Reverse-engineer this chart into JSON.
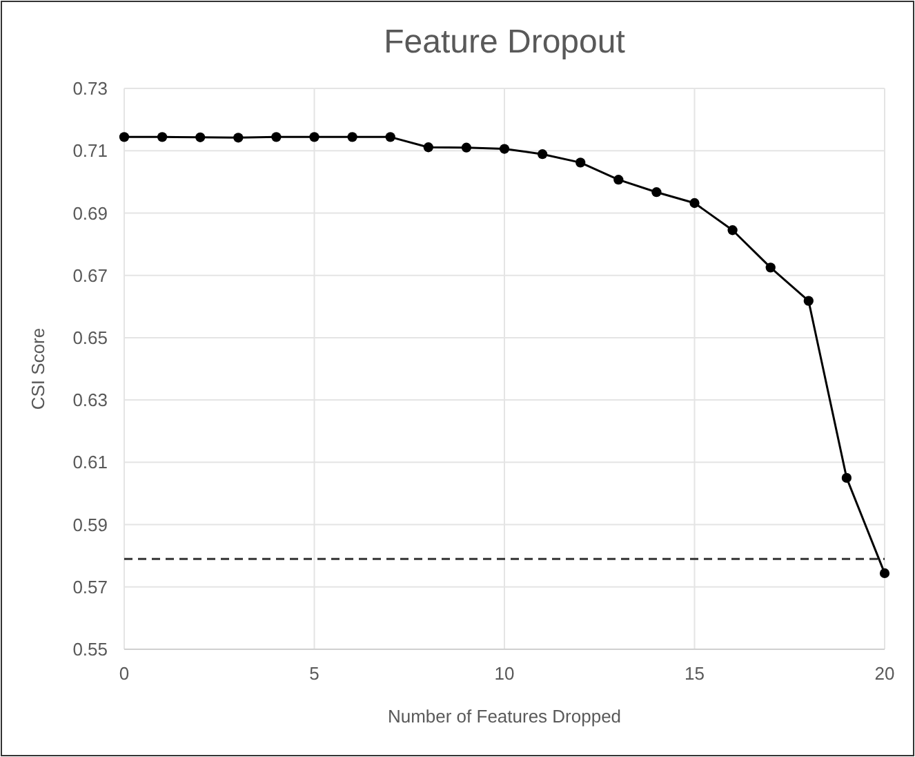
{
  "chart_data": {
    "type": "line",
    "title": "Feature Dropout",
    "xlabel": "Number of Features Dropped",
    "ylabel": "CSI Score",
    "x": [
      0,
      1,
      2,
      3,
      4,
      5,
      6,
      7,
      8,
      9,
      10,
      11,
      12,
      13,
      14,
      15,
      16,
      17,
      18,
      19,
      20
    ],
    "series": [
      {
        "color": "#000000",
        "values": [
          0.7144,
          0.7144,
          0.7143,
          0.7142,
          0.7144,
          0.7144,
          0.7144,
          0.7144,
          0.7111,
          0.711,
          0.7106,
          0.7089,
          0.7062,
          0.7007,
          0.6967,
          0.6932,
          0.6845,
          0.6725,
          0.6618,
          0.605,
          0.5744
        ]
      }
    ],
    "xlim": [
      0,
      20
    ],
    "xticks": [
      0,
      5,
      10,
      15,
      20
    ],
    "ylim": [
      0.55,
      0.73
    ],
    "yticks": [
      {
        "value": 0.55,
        "label": "0.55"
      },
      {
        "value": 0.57,
        "label": "0.57"
      },
      {
        "value": 0.59,
        "label": "0.59"
      },
      {
        "value": 0.61,
        "label": "0.61"
      },
      {
        "value": 0.63,
        "label": "0.63"
      },
      {
        "value": 0.65,
        "label": "0.65"
      },
      {
        "value": 0.67,
        "label": "0.67"
      },
      {
        "value": 0.69,
        "label": "0.69"
      },
      {
        "value": 0.71,
        "label": "0.71"
      },
      {
        "value": 0.73,
        "label": "0.73"
      }
    ],
    "ref_lines": [
      {
        "axis": "y",
        "value": 0.579,
        "color": "#333333",
        "line_style": "dashed"
      }
    ],
    "grid": true,
    "marker": "circle",
    "line_style": "solid"
  }
}
